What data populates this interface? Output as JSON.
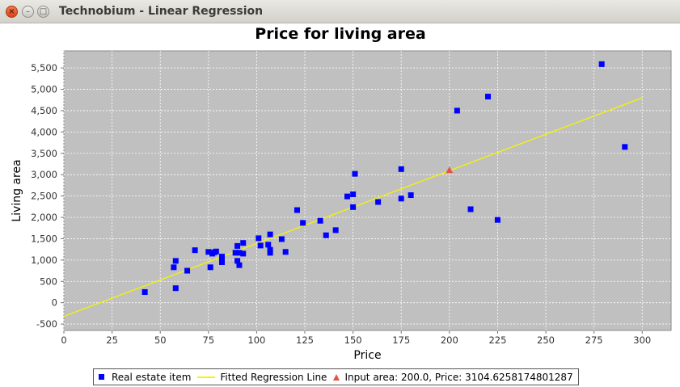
{
  "window": {
    "title": "Technobium - Linear Regression",
    "close_glyph": "×",
    "min_glyph": "–",
    "max_glyph": "□"
  },
  "colors": {
    "plot_background": "#c0c0c0",
    "points": "#0000ff",
    "regression_line": "#f5f500",
    "input_marker": "#e0554a"
  },
  "chart_data": {
    "type": "scatter",
    "title": "Price for living area",
    "xlabel": "Price",
    "ylabel": "Living area",
    "xlim": [
      0,
      315
    ],
    "ylim": [
      -650,
      5900
    ],
    "x_ticks": [
      0,
      25,
      50,
      75,
      100,
      125,
      150,
      175,
      200,
      225,
      250,
      275,
      300
    ],
    "y_ticks": [
      -500,
      0,
      500,
      1000,
      1500,
      2000,
      2500,
      3000,
      3500,
      4000,
      4500,
      5000,
      5500
    ],
    "grid": true,
    "legend_position": "bottom",
    "series": [
      {
        "name": "Real estate item",
        "marker": "square",
        "points": [
          [
            42,
            250
          ],
          [
            57,
            830
          ],
          [
            58,
            980
          ],
          [
            58,
            340
          ],
          [
            64,
            750
          ],
          [
            68,
            1230
          ],
          [
            75,
            1190
          ],
          [
            76,
            830
          ],
          [
            77,
            1150
          ],
          [
            78,
            1180
          ],
          [
            79,
            1200
          ],
          [
            82,
            1080
          ],
          [
            82,
            950
          ],
          [
            89,
            1170
          ],
          [
            90,
            1330
          ],
          [
            90,
            980
          ],
          [
            91,
            880
          ],
          [
            91,
            1170
          ],
          [
            93,
            1400
          ],
          [
            93,
            1150
          ],
          [
            101,
            1510
          ],
          [
            102,
            1340
          ],
          [
            106,
            1360
          ],
          [
            107,
            1600
          ],
          [
            107,
            1240
          ],
          [
            107,
            1170
          ],
          [
            113,
            1490
          ],
          [
            115,
            1190
          ],
          [
            121,
            2170
          ],
          [
            124,
            1870
          ],
          [
            133,
            1920
          ],
          [
            136,
            1580
          ],
          [
            141,
            1700
          ],
          [
            147,
            2490
          ],
          [
            150,
            2540
          ],
          [
            150,
            2240
          ],
          [
            151,
            3020
          ],
          [
            163,
            2360
          ],
          [
            175,
            3130
          ],
          [
            175,
            2440
          ],
          [
            180,
            2520
          ],
          [
            204,
            4500
          ],
          [
            211,
            2190
          ],
          [
            220,
            4830
          ],
          [
            225,
            1940
          ],
          [
            279,
            5590
          ],
          [
            291,
            3650
          ]
        ]
      },
      {
        "name": "Fitted Regression Line",
        "type": "line",
        "points": [
          [
            0,
            -320
          ],
          [
            300,
            4800
          ]
        ]
      },
      {
        "name": "Input area: 200.0, Price: 3104.6258174801287",
        "marker": "triangle",
        "points": [
          [
            200,
            3104.6258174801287
          ]
        ]
      }
    ]
  }
}
